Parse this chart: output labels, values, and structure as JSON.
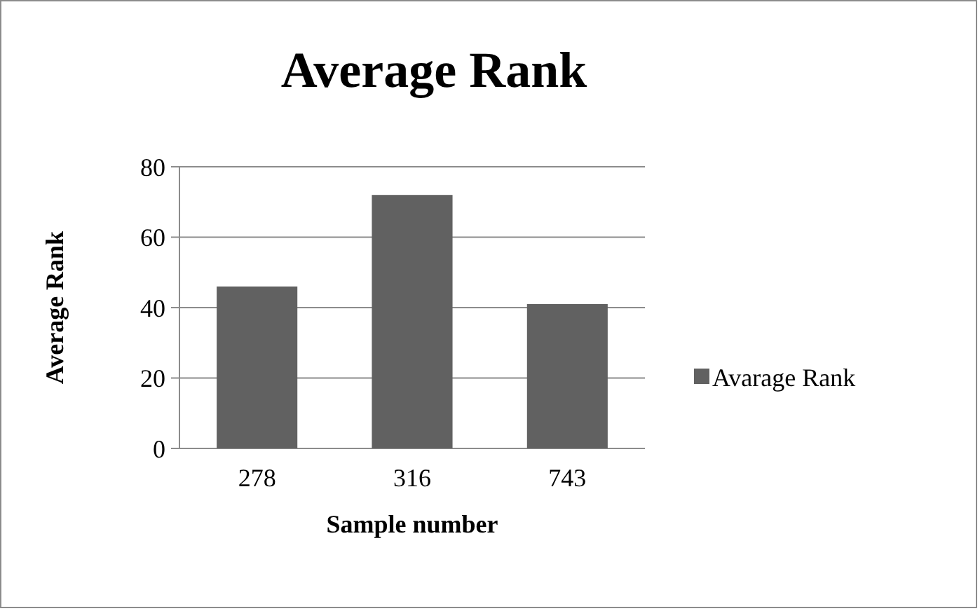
{
  "chart_data": {
    "type": "bar",
    "title": "Average Rank",
    "xlabel": "Sample number",
    "ylabel": "Average Rank",
    "categories": [
      "278",
      "316",
      "743"
    ],
    "series": [
      {
        "name": "Avarage Rank",
        "color": "#616161",
        "values": [
          46,
          72,
          41
        ]
      }
    ],
    "ylim": [
      0,
      80
    ],
    "yticks": [
      0,
      20,
      40,
      60,
      80
    ],
    "grid": "y",
    "legend": "right"
  }
}
